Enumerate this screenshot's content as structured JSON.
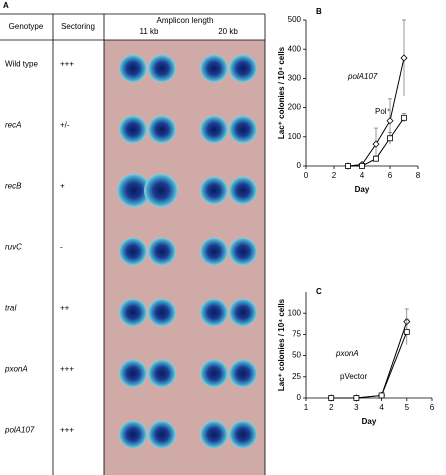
{
  "table": {
    "panel_label": "A",
    "header": {
      "genotype": "Genotype",
      "sectoring": "Sectoring",
      "amplicon": "Amplicon length",
      "columns": [
        "11 kb",
        "20 kb"
      ]
    },
    "rows": [
      [
        "Wild type",
        "+++"
      ],
      [
        "recA",
        "+/-"
      ],
      [
        "recB",
        "+"
      ],
      [
        "ruvC",
        "-"
      ],
      [
        "traI",
        "++"
      ],
      [
        "pxonA",
        "+++"
      ],
      [
        "polA107",
        "+++"
      ]
    ]
  },
  "chart_data": [
    {
      "type": "line",
      "panel_label": "B",
      "x_label": "Day",
      "y_label": "Lac⁺ colonies / 10⁴ cells",
      "xlim": [
        0,
        8
      ],
      "xticks": [
        0,
        2,
        4,
        6,
        8
      ],
      "ylim": [
        0,
        500
      ],
      "yticks": [
        0,
        100,
        200,
        300,
        400,
        500
      ],
      "x": [
        3,
        4,
        5,
        6,
        7
      ],
      "series": [
        {
          "name": "polA107",
          "marker": "diamond",
          "color": "#000000",
          "values": [
            0,
            5,
            75,
            155,
            370
          ],
          "errors": [
            0,
            5,
            55,
            75,
            130
          ]
        },
        {
          "name": "Pol⁺",
          "marker": "square",
          "color": "#000000",
          "values": [
            0,
            0,
            25,
            95,
            165
          ],
          "errors": [
            0,
            0,
            10,
            20,
            15
          ]
        }
      ]
    },
    {
      "type": "line",
      "panel_label": "C",
      "x_label": "Day",
      "y_label": "Lac⁺ colonies / 10⁴ cells",
      "xlim": [
        1,
        6
      ],
      "xticks": [
        1,
        2,
        3,
        4,
        5,
        6
      ],
      "ylim": [
        0,
        125
      ],
      "yticks": [
        0,
        25,
        50,
        75,
        100
      ],
      "x": [
        2,
        3,
        4,
        5
      ],
      "series": [
        {
          "name": "pxonA",
          "marker": "diamond",
          "color": "#000000",
          "values": [
            0,
            0,
            3,
            90
          ],
          "errors": [
            0,
            0,
            1,
            15
          ]
        },
        {
          "name": "pVector",
          "marker": "square",
          "color": "#000000",
          "values": [
            0,
            0,
            3,
            78
          ],
          "errors": [
            0,
            0,
            1,
            15
          ]
        }
      ]
    }
  ]
}
